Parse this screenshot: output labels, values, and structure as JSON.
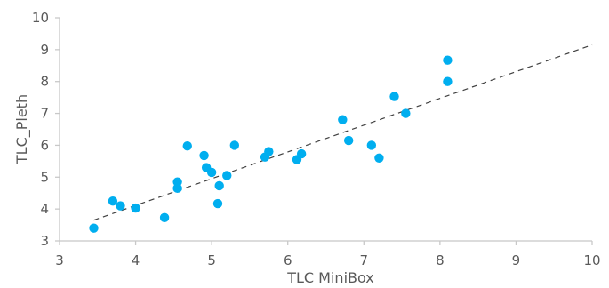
{
  "chart_data": {
    "type": "scatter",
    "title": "",
    "xlabel": "TLC  MiniBox",
    "ylabel": "TLC_Pleth",
    "xlim": [
      3,
      10
    ],
    "ylim": [
      3,
      10
    ],
    "x_ticks": [
      "3",
      "4",
      "5",
      "6",
      "7",
      "8",
      "9",
      "10"
    ],
    "y_ticks": [
      "3",
      "4",
      "5",
      "6",
      "7",
      "8",
      "9",
      "10"
    ],
    "grid": false,
    "legend": "none",
    "point_color": "#00AEEF",
    "trendline": {
      "style": "dashed",
      "color": "#404040",
      "from": [
        3.45,
        3.65
      ],
      "to": [
        10,
        9.15
      ]
    },
    "series": [
      {
        "points": [
          {
            "x": 3.45,
            "y": 3.4
          },
          {
            "x": 3.7,
            "y": 4.25
          },
          {
            "x": 3.8,
            "y": 4.1
          },
          {
            "x": 4.0,
            "y": 4.03
          },
          {
            "x": 4.38,
            "y": 3.73
          },
          {
            "x": 4.55,
            "y": 4.85
          },
          {
            "x": 4.55,
            "y": 4.65
          },
          {
            "x": 4.68,
            "y": 5.98
          },
          {
            "x": 4.9,
            "y": 5.68
          },
          {
            "x": 4.93,
            "y": 5.3
          },
          {
            "x": 5.0,
            "y": 5.15
          },
          {
            "x": 5.08,
            "y": 4.17
          },
          {
            "x": 5.1,
            "y": 4.73
          },
          {
            "x": 5.2,
            "y": 5.05
          },
          {
            "x": 5.3,
            "y": 6.0
          },
          {
            "x": 5.7,
            "y": 5.63
          },
          {
            "x": 5.75,
            "y": 5.8
          },
          {
            "x": 6.12,
            "y": 5.55
          },
          {
            "x": 6.18,
            "y": 5.73
          },
          {
            "x": 6.72,
            "y": 6.8
          },
          {
            "x": 6.8,
            "y": 6.15
          },
          {
            "x": 7.1,
            "y": 6.0
          },
          {
            "x": 7.2,
            "y": 5.6
          },
          {
            "x": 7.4,
            "y": 7.53
          },
          {
            "x": 7.55,
            "y": 7.0
          },
          {
            "x": 8.1,
            "y": 8.0
          },
          {
            "x": 8.1,
            "y": 8.67
          }
        ]
      }
    ]
  }
}
